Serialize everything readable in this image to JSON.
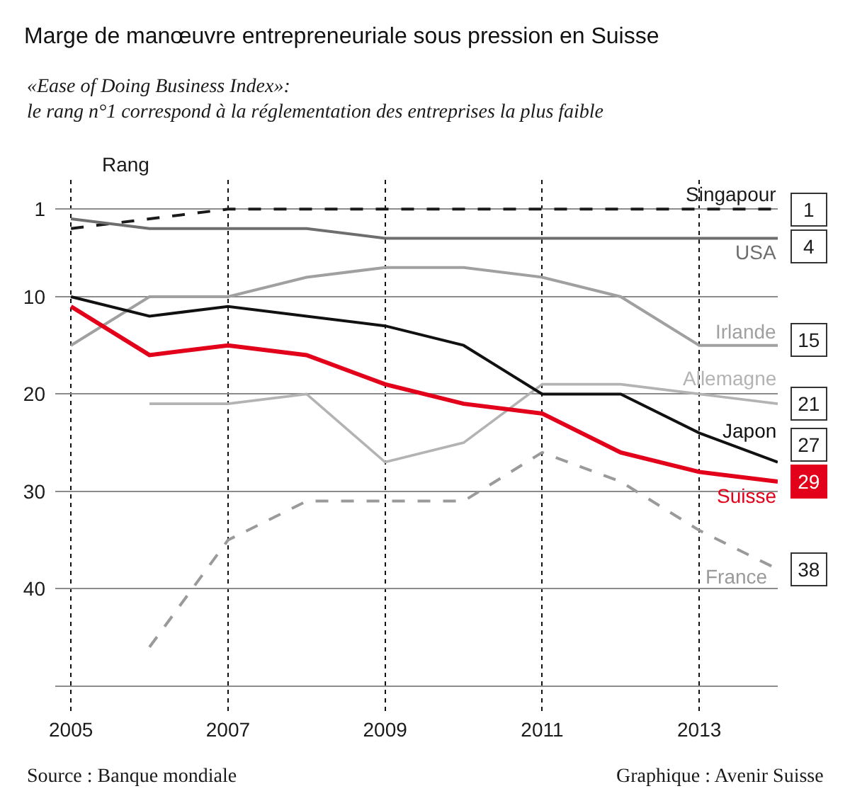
{
  "chart_data": {
    "type": "line",
    "title": "Marge de manœuvre entrepreneuriale sous pression en Suisse",
    "subtitle": "«Ease of Doing Business Index»:\nle rang n°1 correspond à la réglementation des entreprises la plus faible",
    "ylabel": "Rang",
    "annotations": [
      "Source : Banque mondiale",
      "Graphique : Avenir Suisse"
    ],
    "x": [
      2005,
      2006,
      2007,
      2008,
      2009,
      2010,
      2011,
      2012,
      2013,
      2014
    ],
    "xlim": [
      2004.8,
      2014
    ],
    "xticks": [
      2005,
      2007,
      2009,
      2011,
      2013
    ],
    "ylim": [
      53,
      -2
    ],
    "yticks": [
      1,
      10,
      20,
      30,
      40,
      {
        "value": 50,
        "label": null
      }
    ],
    "grid": true,
    "legend": false,
    "marker": "none",
    "line_style": "solid",
    "series": [
      {
        "name": "Singapour",
        "color": "#1a1a1a",
        "line_style": "dashed",
        "values": [
          3,
          2,
          1,
          1,
          1,
          1,
          1,
          1,
          1,
          1
        ],
        "value_labels": [
          null,
          null,
          null,
          null,
          null,
          null,
          null,
          null,
          null,
          "1"
        ]
      },
      {
        "name": "USA",
        "color": "#6e6e6e",
        "values": [
          2,
          3,
          3,
          3,
          4,
          4,
          4,
          4,
          4,
          4
        ],
        "value_labels": [
          null,
          null,
          null,
          null,
          null,
          null,
          null,
          null,
          null,
          "4"
        ]
      },
      {
        "name": "Irlande",
        "color": "#a0a0a0",
        "values": [
          15,
          10,
          10,
          8,
          7,
          7,
          8,
          10,
          15,
          15
        ],
        "value_labels": [
          null,
          null,
          null,
          null,
          null,
          null,
          null,
          null,
          null,
          "15"
        ]
      },
      {
        "name": "Allemagne",
        "color": "#b3b3b3",
        "values": [
          null,
          21,
          21,
          20,
          27,
          25,
          19,
          19,
          20,
          21
        ],
        "value_labels": [
          null,
          null,
          null,
          null,
          null,
          null,
          null,
          null,
          null,
          "21"
        ]
      },
      {
        "name": "Japon",
        "color": "#111111",
        "values": [
          10,
          12,
          11,
          12,
          13,
          15,
          20,
          20,
          24,
          27
        ],
        "value_labels": [
          null,
          null,
          null,
          null,
          null,
          null,
          null,
          null,
          null,
          "27"
        ]
      },
      {
        "name": "Suisse",
        "color": "#e2001a",
        "values": [
          11,
          16,
          15,
          16,
          19,
          21,
          22,
          26,
          28,
          29
        ],
        "value_labels": [
          null,
          null,
          null,
          null,
          null,
          null,
          null,
          null,
          null,
          "29"
        ]
      },
      {
        "name": "France",
        "color": "#9a9a9a",
        "line_style": "dashed",
        "values": [
          null,
          46,
          35,
          31,
          31,
          31,
          26,
          29,
          34,
          38
        ],
        "value_labels": [
          null,
          null,
          null,
          null,
          null,
          null,
          null,
          null,
          null,
          "38"
        ]
      }
    ]
  }
}
